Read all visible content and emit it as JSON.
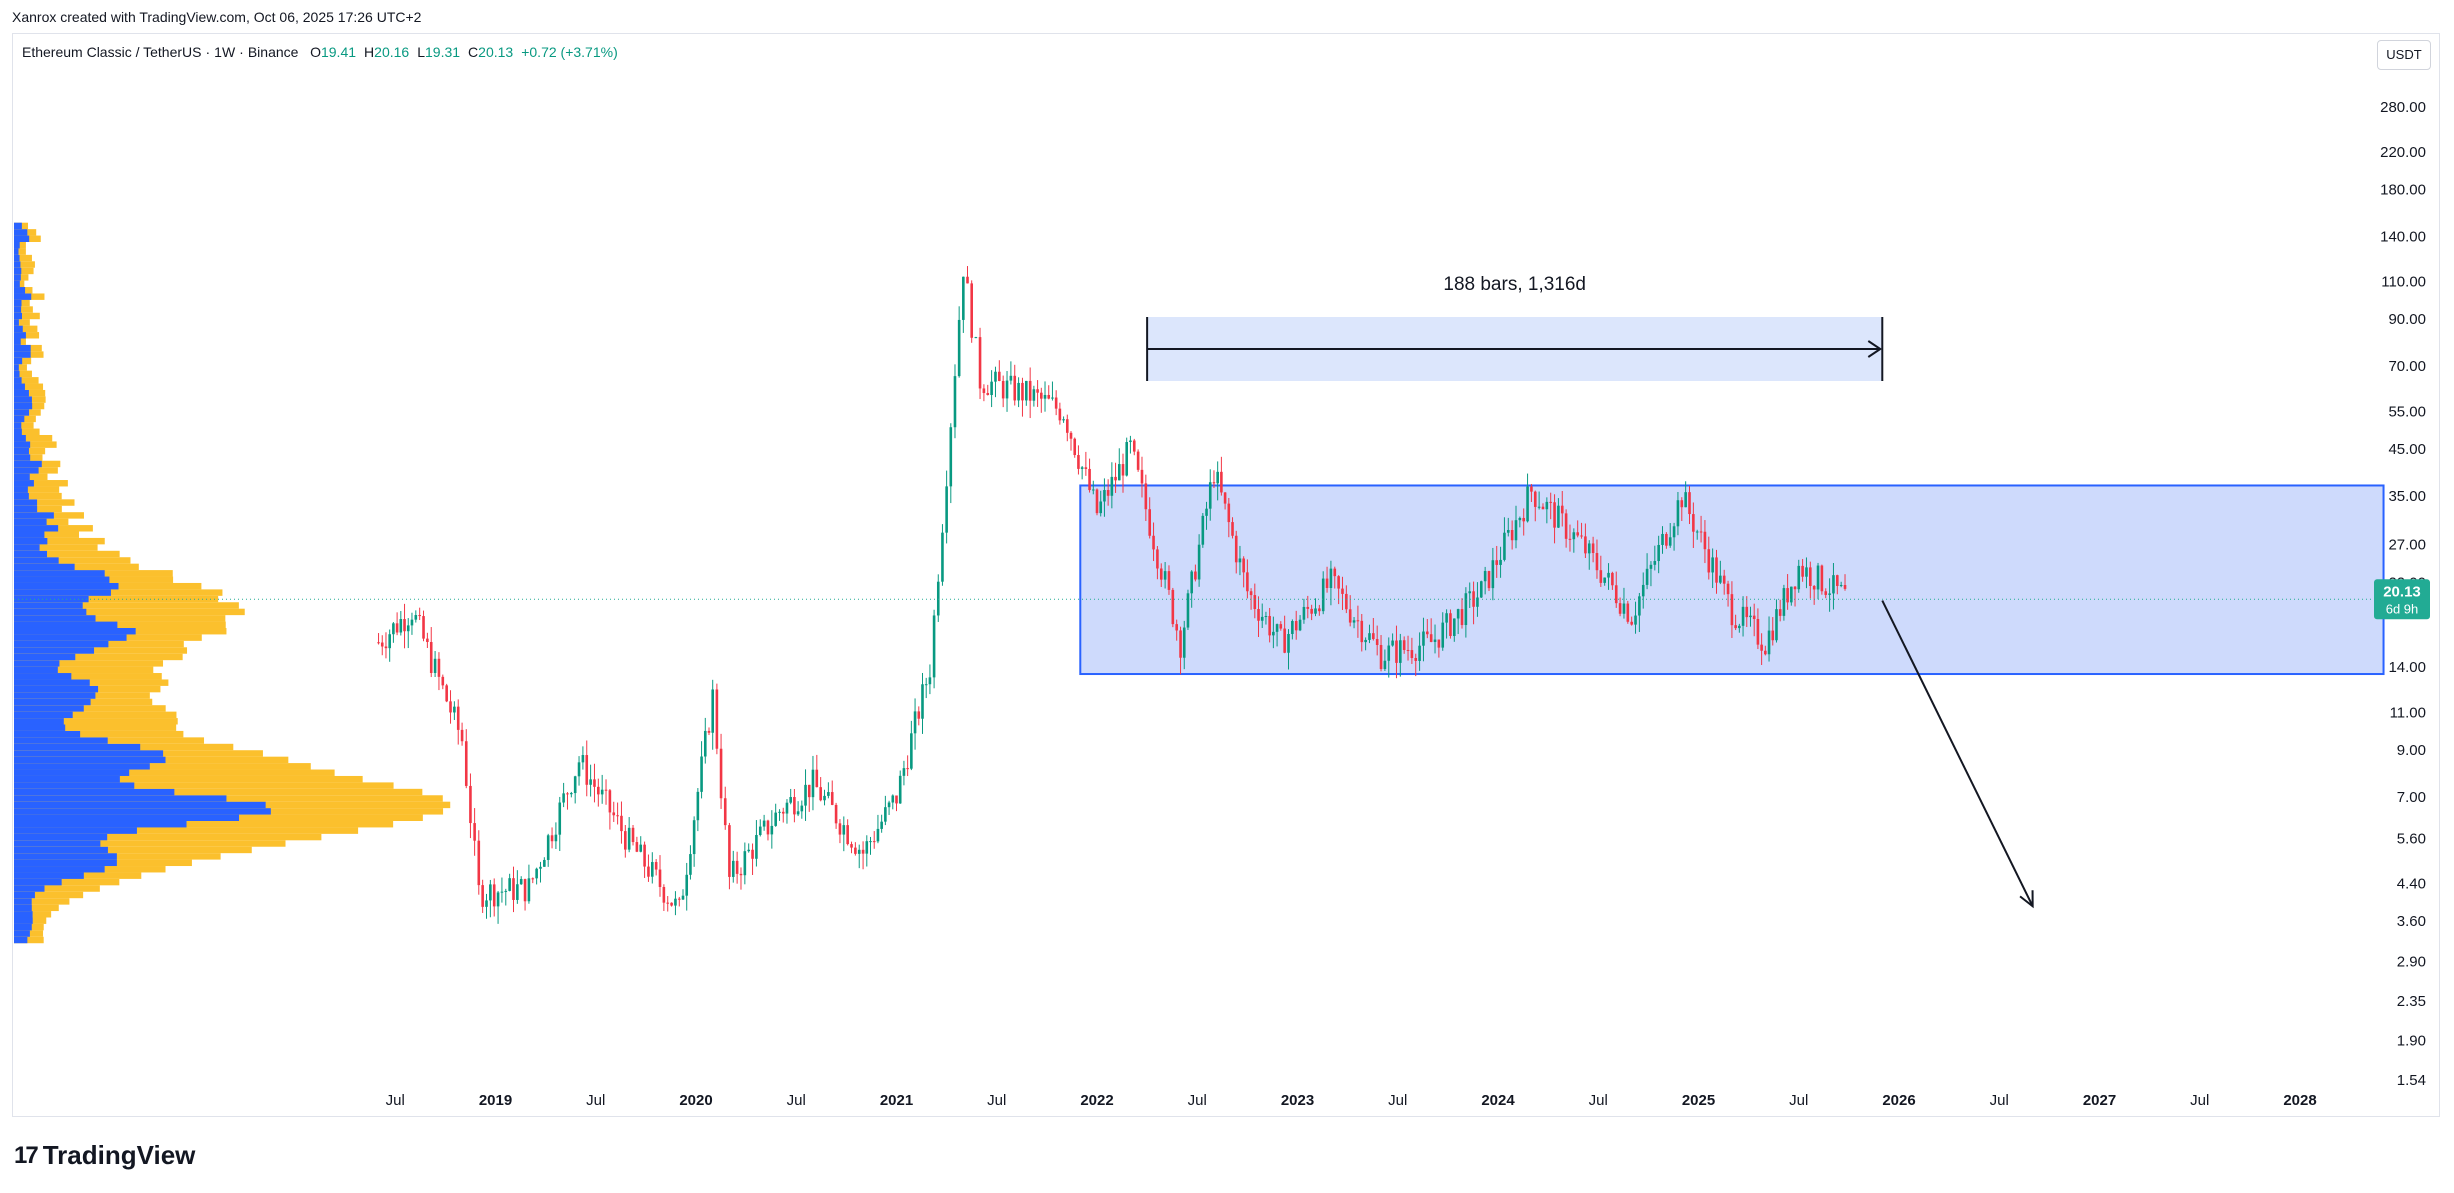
{
  "header": {
    "attribution": "Xanrox created with TradingView.com, Oct 06, 2025 17:26 UTC+2"
  },
  "legend": {
    "symbol": "Ethereum Classic / TetherUS",
    "interval": "1W",
    "exchange": "Binance",
    "open_label": "O",
    "open": "19.41",
    "high_label": "H",
    "high": "20.16",
    "low_label": "L",
    "low": "19.31",
    "close_label": "C",
    "close": "20.13",
    "change": "+0.72 (+3.71%)"
  },
  "price_scale": {
    "unit": "USDT"
  },
  "current_price": {
    "value": "20.13",
    "countdown": "6d 9h"
  },
  "brand": {
    "logo": "17",
    "name": "TradingView"
  },
  "colors": {
    "up": "#089981",
    "down": "#f23645",
    "range_fill": "#c5d3fb",
    "range_border": "#2962ff",
    "measure_fill": "#dce6fc",
    "vp_blue": "#2962ff",
    "vp_yellow": "#fbc02d",
    "price_line": "#22ab94",
    "price_badge": "#22ab94"
  },
  "chart_data": {
    "type": "candlestick",
    "scale": "log",
    "ylim": [
      1.54,
      360
    ],
    "y_ticks": [
      "280.00",
      "220.00",
      "180.00",
      "140.00",
      "110.00",
      "90.00",
      "70.00",
      "55.00",
      "45.00",
      "35.00",
      "27.00",
      "22.00",
      "14.00",
      "11.00",
      "9.00",
      "7.00",
      "5.60",
      "4.40",
      "3.60",
      "2.90",
      "2.35",
      "1.90",
      "1.54"
    ],
    "x_ticks": [
      "Jul",
      "2019",
      "Jul",
      "2020",
      "Jul",
      "2021",
      "Jul",
      "2022",
      "Jul",
      "2023",
      "Jul",
      "2024",
      "Jul",
      "2025",
      "Jul",
      "2026",
      "Jul",
      "2027",
      "Jul",
      "2028"
    ],
    "x_range": [
      "2018-01",
      "2028-07"
    ],
    "approx_path": [
      [
        "2018-06",
        16.0
      ],
      [
        "2018-08",
        19.0
      ],
      [
        "2018-11",
        9.5
      ],
      [
        "2018-12",
        4.2
      ],
      [
        "2019-03",
        4.3
      ],
      [
        "2019-06",
        8.5
      ],
      [
        "2019-09",
        5.5
      ],
      [
        "2019-12",
        3.8
      ],
      [
        "2020-02",
        12.0
      ],
      [
        "2020-03",
        4.5
      ],
      [
        "2020-06",
        6.5
      ],
      [
        "2020-08",
        7.5
      ],
      [
        "2020-11",
        5.2
      ],
      [
        "2021-01",
        7.0
      ],
      [
        "2021-03",
        14.0
      ],
      [
        "2021-04",
        40.0
      ],
      [
        "2021-05",
        120.0
      ],
      [
        "2021-06",
        65.0
      ],
      [
        "2021-09",
        60.0
      ],
      [
        "2021-11",
        55.0
      ],
      [
        "2022-01",
        32.0
      ],
      [
        "2022-03",
        45.0
      ],
      [
        "2022-06",
        16.0
      ],
      [
        "2022-08",
        40.0
      ],
      [
        "2022-10",
        21.0
      ],
      [
        "2022-12",
        16.0
      ],
      [
        "2023-03",
        22.0
      ],
      [
        "2023-06",
        15.0
      ],
      [
        "2023-09",
        16.0
      ],
      [
        "2023-12",
        21.0
      ],
      [
        "2024-03",
        36.0
      ],
      [
        "2024-06",
        27.0
      ],
      [
        "2024-09",
        18.5
      ],
      [
        "2024-12",
        35.0
      ],
      [
        "2025-03",
        19.0
      ],
      [
        "2025-05",
        16.0
      ],
      [
        "2025-07",
        24.0
      ],
      [
        "2025-10",
        20.13
      ]
    ],
    "volume_profile": "visible range volume profile on left edge (blue = up volume, yellow = down volume)",
    "annotations": {
      "range_box": {
        "from": "2021-12",
        "to": "2028-06",
        "top": 37.0,
        "bottom": 13.5
      },
      "measure": {
        "label": "188 bars, 1,316d",
        "from": "2022-04",
        "to": "2025-12"
      },
      "arrow": {
        "from": [
          "2025-12",
          20.0
        ],
        "to": [
          "2026-09",
          3.9
        ]
      }
    }
  }
}
